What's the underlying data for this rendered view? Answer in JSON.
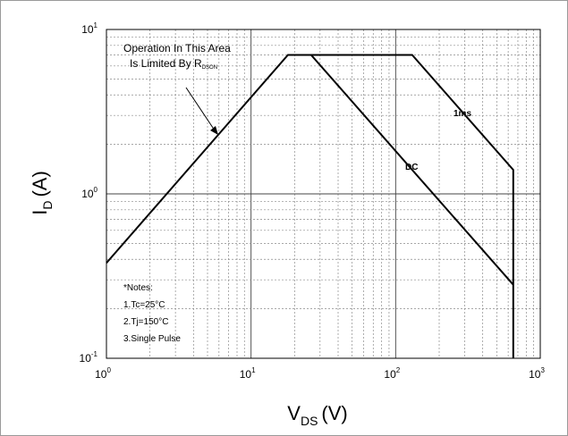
{
  "chart_data": {
    "type": "line",
    "xscale": "log",
    "yscale": "log",
    "xlim": [
      1,
      1000
    ],
    "ylim": [
      0.1,
      10
    ],
    "grid": true,
    "xlabel": {
      "main": "V",
      "sub": "DS",
      "unit": "(V)"
    },
    "ylabel": {
      "main": "I",
      "sub": "D",
      "unit": "(A)"
    },
    "x_ticks": [
      {
        "base": "10",
        "exp": "0",
        "value": 1
      },
      {
        "base": "10",
        "exp": "1",
        "value": 10
      },
      {
        "base": "10",
        "exp": "2",
        "value": 100
      },
      {
        "base": "10",
        "exp": "3",
        "value": 1000
      }
    ],
    "y_ticks": [
      {
        "base": "10",
        "exp": "-1",
        "value": 0.1
      },
      {
        "base": "10",
        "exp": "0",
        "value": 1
      },
      {
        "base": "10",
        "exp": "1",
        "value": 10
      }
    ],
    "series": [
      {
        "name": "1ms",
        "x": [
          1,
          18,
          130,
          650,
          650
        ],
        "y": [
          0.38,
          7,
          7,
          1.4,
          0.1
        ]
      },
      {
        "name": "DC",
        "x": [
          18,
          26,
          650
        ],
        "y": [
          7,
          7,
          0.28
        ]
      }
    ],
    "annotations": {
      "operation_line1": "Operation In This Area",
      "operation_line2": "Is Limited By R",
      "operation_sub": "DSON",
      "notes": [
        "*Notes:",
        "1.Tc=25°C",
        "2.Tj=150°C",
        "3.Single Pulse"
      ]
    }
  }
}
